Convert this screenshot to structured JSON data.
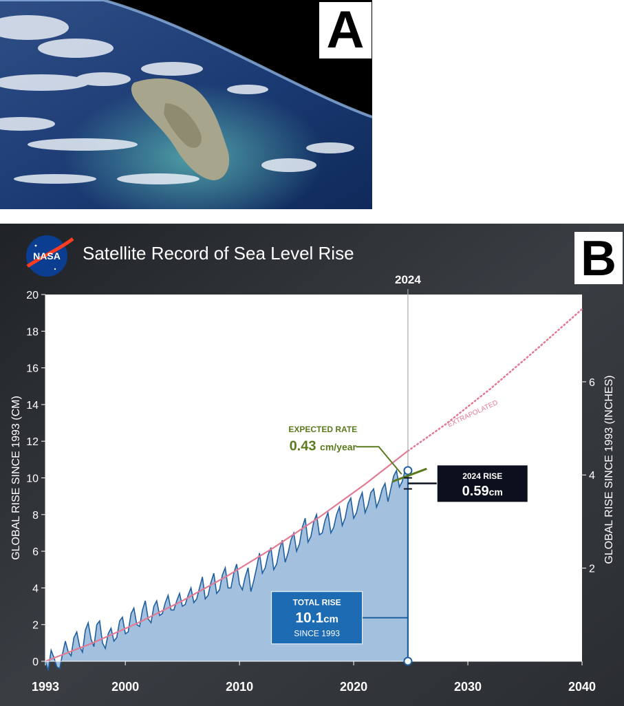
{
  "panel_a": {
    "letter": "A"
  },
  "panel_b": {
    "letter": "B",
    "logo_text": "NASA",
    "title": "Satellite Record of Sea Level Rise",
    "marker_year_label": "2024",
    "expected_rate": {
      "label": "EXPECTED RATE",
      "value": "0.43",
      "unit": "cm/year"
    },
    "rise_2024": {
      "label": "2024 RISE",
      "value": "0.59",
      "unit": "cm"
    },
    "total_rise": {
      "label": "TOTAL RISE",
      "value": "10.1",
      "unit": "cm",
      "sublabel": "SINCE 1993"
    },
    "extrapolated_label": "EXTRAPOLATED"
  },
  "colors": {
    "background_dark": "#2a2d31",
    "plot_bg": "#ffffff",
    "fill_blue": "#a3c0df",
    "line_blue": "#1f5f9e",
    "trend_pink": "#e27a93",
    "rate_green": "#5b7a1e",
    "box_dark": "#0b0f1e",
    "box_blue": "#1d6bb3"
  },
  "chart_data": {
    "type": "area",
    "title": "Satellite Record of Sea Level Rise",
    "xlabel": "",
    "ylabel": "GLOBAL RISE SINCE 1993 (CM)",
    "ylabel_right": "GLOBAL RISE SINCE 1993 (INCHES)",
    "xlim": [
      1993,
      2040
    ],
    "ylim": [
      0,
      20
    ],
    "x_ticks": [
      "1993",
      "2000",
      "2010",
      "2020",
      "2030",
      "2040"
    ],
    "y_ticks": [
      "0",
      "2",
      "4",
      "6",
      "8",
      "10",
      "12",
      "14",
      "16",
      "18",
      "20"
    ],
    "y_ticks_right": [
      "2",
      "4",
      "6"
    ],
    "grid": false,
    "series": [
      {
        "kind": "observed",
        "x": [
          1993.0,
          1993.25,
          1993.5,
          1993.75,
          1994.0,
          1994.25,
          1994.5,
          1994.75,
          1995.0,
          1995.25,
          1995.5,
          1995.75,
          1996.0,
          1996.25,
          1996.5,
          1996.75,
          1997.0,
          1997.25,
          1997.5,
          1997.75,
          1998.0,
          1998.25,
          1998.5,
          1998.75,
          1999.0,
          1999.25,
          1999.5,
          1999.75,
          2000.0,
          2000.25,
          2000.5,
          2000.75,
          2001.0,
          2001.25,
          2001.5,
          2001.75,
          2002.0,
          2002.25,
          2002.5,
          2002.75,
          2003.0,
          2003.25,
          2003.5,
          2003.75,
          2004.0,
          2004.25,
          2004.5,
          2004.75,
          2005.0,
          2005.25,
          2005.5,
          2005.75,
          2006.0,
          2006.25,
          2006.5,
          2006.75,
          2007.0,
          2007.25,
          2007.5,
          2007.75,
          2008.0,
          2008.25,
          2008.5,
          2008.75,
          2009.0,
          2009.25,
          2009.5,
          2009.75,
          2010.0,
          2010.25,
          2010.5,
          2010.75,
          2011.0,
          2011.25,
          2011.5,
          2011.75,
          2012.0,
          2012.25,
          2012.5,
          2012.75,
          2013.0,
          2013.25,
          2013.5,
          2013.75,
          2014.0,
          2014.25,
          2014.5,
          2014.75,
          2015.0,
          2015.25,
          2015.5,
          2015.75,
          2016.0,
          2016.25,
          2016.5,
          2016.75,
          2017.0,
          2017.25,
          2017.5,
          2017.75,
          2018.0,
          2018.25,
          2018.5,
          2018.75,
          2019.0,
          2019.25,
          2019.5,
          2019.75,
          2020.0,
          2020.25,
          2020.5,
          2020.75,
          2021.0,
          2021.25,
          2021.5,
          2021.75,
          2022.0,
          2022.25,
          2022.5,
          2022.75,
          2023.0,
          2023.25,
          2023.5,
          2023.75,
          2024.0,
          2024.25,
          2024.5,
          2024.75
        ],
        "y": [
          0.0,
          -0.5,
          0.6,
          0.2,
          -0.3,
          -0.4,
          0.4,
          1.1,
          0.5,
          0.3,
          1.3,
          1.6,
          0.8,
          0.5,
          1.7,
          2.1,
          1.2,
          0.8,
          2.0,
          2.2,
          1.0,
          0.7,
          1.5,
          1.8,
          1.1,
          1.3,
          2.2,
          2.4,
          1.5,
          1.6,
          2.6,
          2.9,
          2.0,
          1.9,
          2.8,
          3.3,
          2.3,
          2.1,
          3.0,
          3.3,
          2.5,
          2.6,
          3.2,
          3.6,
          2.8,
          2.8,
          3.3,
          3.7,
          3.0,
          3.1,
          3.6,
          4.0,
          3.2,
          3.4,
          4.0,
          4.6,
          3.4,
          3.6,
          4.3,
          4.8,
          3.7,
          3.9,
          4.7,
          5.1,
          4.0,
          4.0,
          4.8,
          5.3,
          4.2,
          3.9,
          4.6,
          5.1,
          3.8,
          4.4,
          5.1,
          5.9,
          4.8,
          5.1,
          5.8,
          6.2,
          5.0,
          5.3,
          6.1,
          6.6,
          5.4,
          5.9,
          6.6,
          7.0,
          6.0,
          6.4,
          7.3,
          7.8,
          6.5,
          6.8,
          7.6,
          8.0,
          6.9,
          7.0,
          7.7,
          8.1,
          7.0,
          7.3,
          8.0,
          8.4,
          7.4,
          7.8,
          8.6,
          8.9,
          7.8,
          8.1,
          8.8,
          9.2,
          8.1,
          8.5,
          9.2,
          9.4,
          8.4,
          8.8,
          9.4,
          9.7,
          8.7,
          9.4,
          10.1,
          10.4,
          9.5,
          9.8,
          10.4,
          10.1
        ]
      },
      {
        "kind": "trend",
        "x": [
          1993,
          1997,
          2001,
          2005,
          2009,
          2013,
          2017,
          2021,
          2024.75
        ],
        "y": [
          0,
          0.96,
          2.06,
          3.3,
          4.68,
          6.2,
          7.86,
          9.66,
          11.47
        ]
      },
      {
        "kind": "extrapolated",
        "x": [
          2024.75,
          2028,
          2032,
          2036,
          2040
        ],
        "y": [
          11.47,
          12.9,
          14.87,
          17.0,
          19.2
        ]
      }
    ],
    "marker_year": 2024.75,
    "total_rise_cm": 10.1,
    "rise_2024_cm": 0.59,
    "expected_rate_cm_per_year": 0.43
  }
}
